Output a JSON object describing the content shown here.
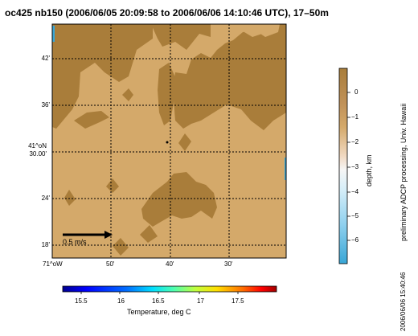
{
  "title": "oc425 nb150 (2006/06/05 20:09:58 to 2006/06/06 14:10:46 UTC), 17–50m",
  "map": {
    "lat_labels": [
      "42'",
      "36'",
      "41^oN\n30.00'",
      "24'",
      "18'"
    ],
    "lon_labels": [
      "71^oW",
      "50'",
      "40'",
      "30'"
    ],
    "vector_scale_label": "0.5 m/s",
    "colors": {
      "light_terrain": "#d4a96a",
      "dark_terrain": "#a97d3a",
      "grid": "#000000",
      "arrow": "#000000"
    }
  },
  "depth_colorbar": {
    "label": "depth, km",
    "ticks": [
      "0",
      "−1",
      "−2",
      "−3",
      "−4",
      "−5",
      "−6"
    ],
    "colors": [
      "#a97d3a",
      "#d4a96a",
      "#f5ddc8",
      "#e8f4fa",
      "#b3e0f2",
      "#6cc6e8",
      "#38a6d6"
    ]
  },
  "temp_colorbar": {
    "label": "Temperature, deg C",
    "ticks": [
      "15.5",
      "16",
      "16.5",
      "17",
      "17.5"
    ],
    "colors": [
      "#00008f",
      "#0000ff",
      "#006fff",
      "#00dfff",
      "#4fffaf",
      "#bfff3f",
      "#ffdf00",
      "#ff7000",
      "#ff0000",
      "#9f0000"
    ]
  },
  "side_text": "preliminary ADCP processing,  Univ. Hawaii",
  "timestamp": "2006/06/06 15:40:46"
}
